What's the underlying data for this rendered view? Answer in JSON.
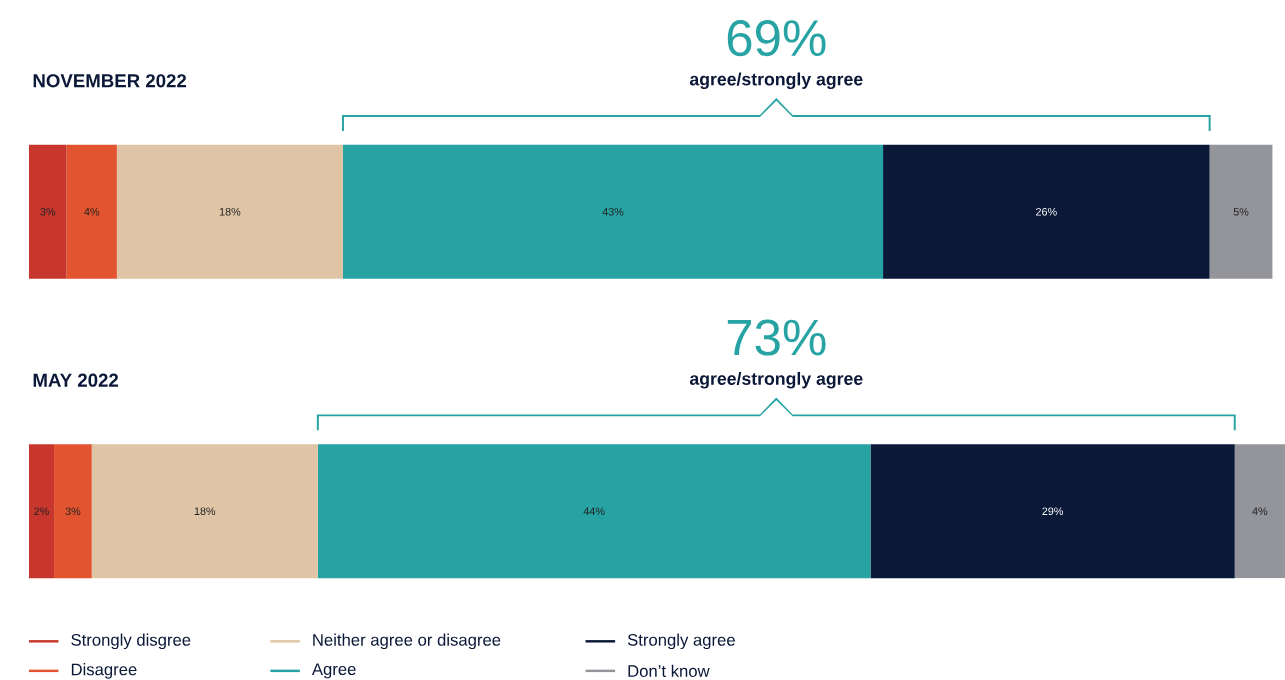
{
  "chart_data": {
    "type": "bar",
    "orientation": "horizontal",
    "stacked": true,
    "categories": [
      "NOVEMBER 2022",
      "MAY 2022"
    ],
    "series": [
      {
        "name": "Strongly disgree",
        "color": "#c8372d",
        "values": [
          3,
          2
        ],
        "value_labels": [
          "3%",
          "2%"
        ]
      },
      {
        "name": "Disagree",
        "color": "#e2542f",
        "values": [
          4,
          3
        ],
        "value_labels": [
          "4%",
          "3%"
        ]
      },
      {
        "name": "Neither agree or disagree",
        "color": "#dfc5a5",
        "values": [
          18,
          18
        ],
        "value_labels": [
          "18%",
          "18%"
        ]
      },
      {
        "name": "Agree",
        "color": "#27a3a3",
        "values": [
          43,
          44
        ],
        "value_labels": [
          "43%",
          "44%"
        ]
      },
      {
        "name": "Strongly agree",
        "color": "#0b1838",
        "values": [
          26,
          29
        ],
        "value_labels": [
          "26%",
          "29%"
        ]
      },
      {
        "name": "Don’t know",
        "color": "#94959b",
        "values": [
          5,
          4
        ],
        "value_labels": [
          "5%",
          "4%"
        ]
      }
    ],
    "annotations": [
      "69%",
      "agree/strongly agree",
      "73%",
      "agree/strongly agree"
    ],
    "legend": "bottom left"
  }
}
